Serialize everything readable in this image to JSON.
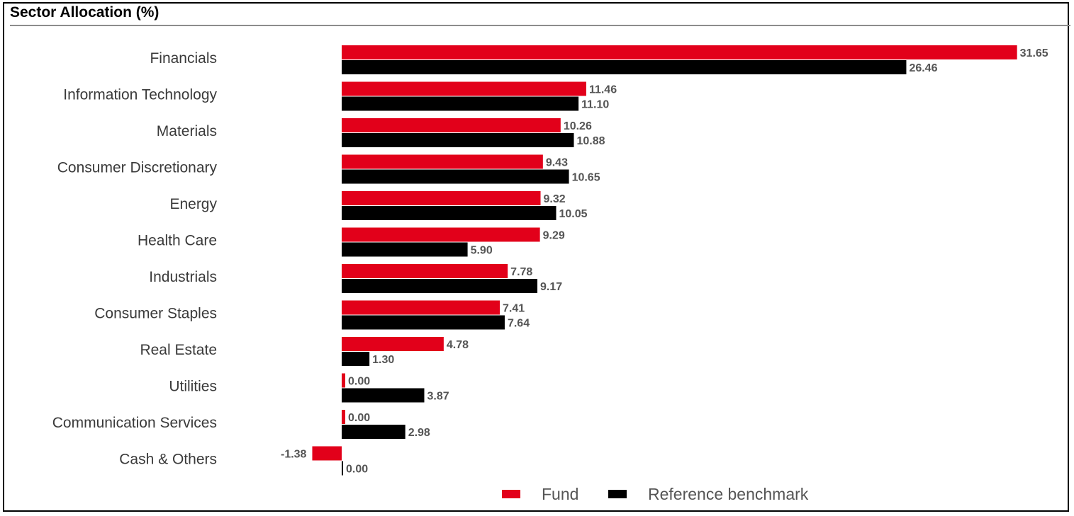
{
  "chart_data": {
    "type": "bar",
    "orientation": "horizontal",
    "title": "Sector Allocation (%)",
    "categories": [
      "Financials",
      "Information Technology",
      "Materials",
      "Consumer Discretionary",
      "Energy",
      "Health Care",
      "Industrials",
      "Consumer Staples",
      "Real Estate",
      "Utilities",
      "Communication Services",
      "Cash & Others"
    ],
    "series": [
      {
        "name": "Fund",
        "color": "#e2001a",
        "values": [
          31.65,
          11.46,
          10.26,
          9.43,
          9.32,
          9.29,
          7.78,
          7.41,
          4.78,
          0.0,
          0.0,
          -1.38
        ],
        "labels": [
          "31.65",
          "11.46",
          "10.26",
          "9.43",
          "9.32",
          "9.29",
          "7.78",
          "7.41",
          "4.78",
          "0.00",
          "0.00",
          "-1.38"
        ]
      },
      {
        "name": "Reference benchmark",
        "color": "#000000",
        "values": [
          26.46,
          11.1,
          10.88,
          10.65,
          10.05,
          5.9,
          9.17,
          7.64,
          1.3,
          3.87,
          2.98,
          0.0
        ],
        "labels": [
          "26.46",
          "11.10",
          "10.88",
          "10.65",
          "10.05",
          "5.90",
          "9.17",
          "7.64",
          "1.30",
          "3.87",
          "2.98",
          "0.00"
        ]
      }
    ],
    "xlim": [
      -2,
      32
    ],
    "legend": "bottom",
    "grid": false
  }
}
